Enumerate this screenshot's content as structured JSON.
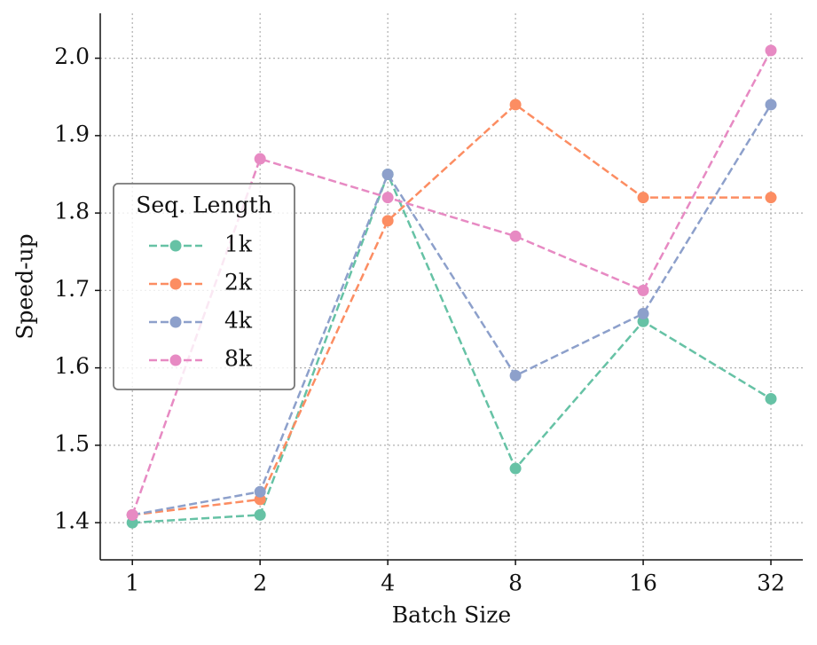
{
  "chart_data": {
    "type": "line",
    "xlabel": "Batch Size",
    "ylabel": "Speed-up",
    "x": [
      1,
      2,
      4,
      8,
      16,
      32
    ],
    "xscale": "log2",
    "xlim": [
      0.84,
      38.05
    ],
    "xticks": [
      1,
      2,
      4,
      8,
      16,
      32
    ],
    "ylim": [
      1.352,
      2.058
    ],
    "yticks": [
      1.4,
      1.5,
      1.6,
      1.7,
      1.8,
      1.9,
      {
        "value": 2,
        "label": "2.0"
      }
    ],
    "grid": true,
    "legend_title": "Seq. Length",
    "legend_loc": "center left",
    "series": [
      {
        "name": "1k",
        "color": "#66c2a5",
        "values": [
          1.4,
          1.41,
          1.85,
          1.47,
          1.66,
          1.56
        ]
      },
      {
        "name": "2k",
        "color": "#fc8d62",
        "values": [
          1.41,
          1.43,
          1.79,
          1.94,
          1.82,
          1.82
        ]
      },
      {
        "name": "4k",
        "color": "#8da0cb",
        "values": [
          1.41,
          1.44,
          1.85,
          1.59,
          1.67,
          1.94
        ]
      },
      {
        "name": "8k",
        "color": "#e78ac3",
        "values": [
          1.41,
          1.87,
          1.82,
          1.77,
          1.7,
          2.01
        ]
      }
    ]
  }
}
